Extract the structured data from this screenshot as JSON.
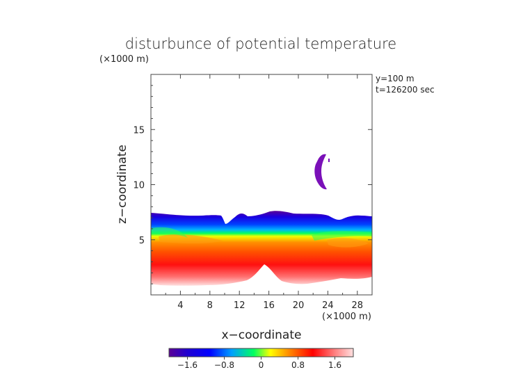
{
  "chart_data": {
    "type": "heatmap",
    "title": "disturbunce of potential temperature",
    "ylabel": "z−coordinate",
    "xlabel": "x−coordinate",
    "y_unit": "(×1000 m)",
    "x_unit": "(×1000 m)",
    "annotations": [
      "y=100 m",
      "t=126200 sec"
    ],
    "xlim": [
      0,
      30
    ],
    "ylim": [
      0,
      20
    ],
    "x_ticks": [
      4,
      8,
      12,
      16,
      20,
      24,
      28
    ],
    "x_tick_labels": [
      "4",
      "8",
      "12",
      "16",
      "20",
      "24",
      "28"
    ],
    "y_ticks": [
      5,
      10,
      15
    ],
    "y_tick_labels": [
      "5",
      "10",
      "15"
    ],
    "grid": false,
    "colorbar": {
      "range": [
        -2.0,
        2.0
      ],
      "ticks": [
        -1.6,
        -0.8,
        0,
        0.8,
        1.6
      ],
      "tick_labels": [
        "−1.6",
        "−0.8",
        "0",
        "0.8",
        "1.6"
      ],
      "colors": [
        "#5a0096",
        "#0000ff",
        "#00a0ff",
        "#00ff40",
        "#ffff00",
        "#ff8000",
        "#ff0000",
        "#ff8080",
        "#ffe0e0"
      ]
    },
    "regions": [
      {
        "name": "upper negative layer",
        "value_range": [
          -2.0,
          -1.0
        ],
        "x": [
          0,
          30
        ],
        "z": [
          6.0,
          7.5
        ]
      },
      {
        "name": "transition layer",
        "value_range": [
          -1.0,
          0.0
        ],
        "x": [
          0,
          30
        ],
        "z": [
          5.0,
          6.0
        ]
      },
      {
        "name": "positive layer",
        "value_range": [
          0.0,
          2.0
        ],
        "x": [
          0,
          30
        ],
        "z": [
          1.0,
          5.0
        ]
      },
      {
        "name": "isolated negative patch",
        "value_range": [
          -2.0,
          -1.6
        ],
        "x": [
          21.8,
          23.5
        ],
        "z": [
          9.0,
          12.5
        ]
      }
    ]
  }
}
